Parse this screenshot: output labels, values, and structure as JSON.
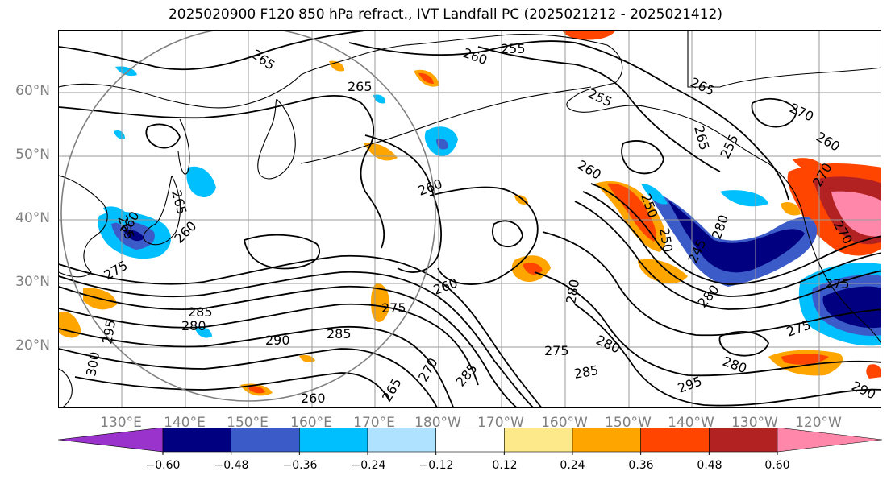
{
  "title": "2025020900 F120 850 hPa refract., IVT Landfall PC (2025021212 - 2025021412)",
  "latitude_labels": [
    "60°N",
    "50°N",
    "40°N",
    "30°N",
    "20°N"
  ],
  "longitude_labels": [
    "130°E",
    "140°E",
    "150°E",
    "160°E",
    "170°E",
    "180°W",
    "170°W",
    "160°W",
    "150°W",
    "140°W",
    "130°W",
    "120°W"
  ],
  "contour_labels": [
    "265",
    "260",
    "255",
    "255",
    "265",
    "265",
    "270",
    "260",
    "265",
    "255",
    "260",
    "260",
    "270",
    "265",
    "250",
    "260",
    "245",
    "275",
    "275",
    "285",
    "280",
    "290",
    "285",
    "275",
    "260",
    "280",
    "280",
    "275",
    "280",
    "285",
    "280",
    "290",
    "295",
    "300",
    "295",
    "285",
    "275",
    "265",
    "260",
    "270",
    "250",
    "260",
    "265",
    "270",
    "280"
  ],
  "colorbar": {
    "tick_labels": [
      "−0.60",
      "−0.48",
      "−0.36",
      "−0.24",
      "−0.12",
      "0.12",
      "0.24",
      "0.36",
      "0.48",
      "0.60"
    ],
    "colors": [
      "#9933cc",
      "#000080",
      "#3a5bc8",
      "#00bfff",
      "#aee2ff",
      "#ffffff",
      "#fde98a",
      "#ffa500",
      "#ff4500",
      "#b22222",
      "#ff88aa"
    ]
  },
  "legend_colors": {
    "contour": "#000000",
    "grid": "#9a9a9a",
    "range_circle": "#808080",
    "axis_label": "#808080"
  }
}
